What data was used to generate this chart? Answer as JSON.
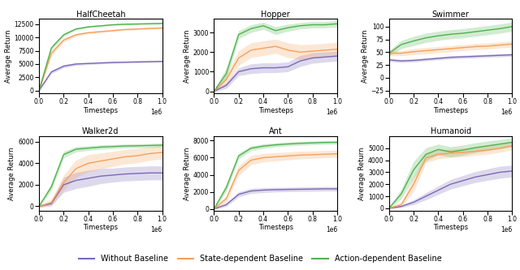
{
  "titles": [
    "HalfCheetah",
    "Hopper",
    "Swimmer",
    "Walker2d",
    "Ant",
    "Humanoid"
  ],
  "xlabel": "Timesteps",
  "ylabel": "Average Return",
  "colors": {
    "without": "#7b6ab5",
    "state": "#f5a05a",
    "action": "#4db34d"
  },
  "fill_alpha": 0.25,
  "legend_labels": [
    "Without Baseline",
    "State-dependent Baseline",
    "Action-dependent Baseline"
  ],
  "subplots": {
    "HalfCheetah": {
      "xlim": [
        0,
        1000000
      ],
      "ylim": [
        -500,
        13500
      ],
      "yticks": [
        0,
        2500,
        5000,
        7500,
        10000,
        12500
      ],
      "without": {
        "mean": [
          0,
          3500,
          4600,
          5000,
          5100,
          5200,
          5300,
          5350,
          5400,
          5450,
          5500
        ],
        "std": [
          200,
          300,
          300,
          250,
          200,
          200,
          180,
          180,
          180,
          180,
          180
        ]
      },
      "state": {
        "mean": [
          0,
          7000,
          9500,
          10500,
          10900,
          11100,
          11300,
          11500,
          11600,
          11700,
          11800
        ],
        "std": [
          200,
          500,
          350,
          280,
          220,
          200,
          180,
          180,
          180,
          180,
          180
        ]
      },
      "action": {
        "mean": [
          0,
          8000,
          10500,
          11600,
          12000,
          12200,
          12400,
          12500,
          12550,
          12600,
          12650
        ],
        "std": [
          200,
          400,
          300,
          200,
          180,
          160,
          150,
          150,
          150,
          150,
          150
        ]
      }
    },
    "Hopper": {
      "xlim": [
        0,
        1000000
      ],
      "ylim": [
        -100,
        3700
      ],
      "yticks": [
        0,
        1000,
        2000,
        3000
      ],
      "without": {
        "mean": [
          0,
          300,
          1000,
          1150,
          1200,
          1200,
          1250,
          1550,
          1700,
          1750,
          1800
        ],
        "std": [
          50,
          150,
          200,
          250,
          250,
          250,
          250,
          280,
          270,
          260,
          260
        ]
      },
      "state": {
        "mean": [
          0,
          600,
          1700,
          2100,
          2200,
          2300,
          2100,
          2000,
          2050,
          2100,
          2150
        ],
        "std": [
          50,
          250,
          380,
          380,
          380,
          360,
          380,
          380,
          360,
          350,
          350
        ]
      },
      "action": {
        "mean": [
          0,
          900,
          2900,
          3200,
          3350,
          3100,
          3250,
          3350,
          3400,
          3400,
          3450
        ],
        "std": [
          50,
          300,
          200,
          200,
          180,
          200,
          180,
          160,
          160,
          160,
          160
        ]
      }
    },
    "Swimmer": {
      "xlim": [
        0,
        1000000
      ],
      "ylim": [
        -30,
        115
      ],
      "yticks": [
        -25,
        0,
        25,
        50,
        75,
        100
      ],
      "without": {
        "mean": [
          35,
          33,
          34,
          36,
          38,
          40,
          41,
          42,
          43,
          44,
          45
        ],
        "std": [
          3,
          3,
          3,
          3,
          3,
          3,
          3,
          3,
          3,
          3,
          3
        ]
      },
      "state": {
        "mean": [
          48,
          48,
          51,
          53,
          55,
          57,
          59,
          61,
          62,
          64,
          66
        ],
        "std": [
          5,
          5,
          6,
          6,
          6,
          6,
          6,
          6,
          6,
          6,
          6
        ]
      },
      "action": {
        "mean": [
          48,
          65,
          72,
          78,
          82,
          85,
          87,
          90,
          93,
          96,
          100
        ],
        "std": [
          5,
          8,
          9,
          9,
          9,
          9,
          9,
          9,
          9,
          9,
          9
        ]
      }
    },
    "Walker2d": {
      "xlim": [
        0,
        1000000
      ],
      "ylim": [
        -400,
        6500
      ],
      "yticks": [
        0,
        2000,
        4000,
        6000
      ],
      "without": {
        "mean": [
          0,
          250,
          2000,
          2400,
          2600,
          2800,
          2900,
          3000,
          3050,
          3100,
          3100
        ],
        "std": [
          100,
          200,
          700,
          750,
          750,
          700,
          650,
          650,
          650,
          650,
          650
        ]
      },
      "state": {
        "mean": [
          0,
          350,
          2200,
          3500,
          4000,
          4200,
          4400,
          4600,
          4700,
          4900,
          5000
        ],
        "std": [
          100,
          300,
          700,
          800,
          800,
          750,
          700,
          680,
          660,
          640,
          620
        ]
      },
      "action": {
        "mean": [
          0,
          1800,
          4800,
          5300,
          5400,
          5500,
          5550,
          5600,
          5620,
          5650,
          5680
        ],
        "std": [
          100,
          350,
          300,
          250,
          220,
          200,
          180,
          180,
          180,
          180,
          180
        ]
      }
    },
    "Ant": {
      "xlim": [
        0,
        1000000
      ],
      "ylim": [
        -200,
        8500
      ],
      "yticks": [
        0,
        2000,
        4000,
        6000,
        8000
      ],
      "without": {
        "mean": [
          0,
          500,
          1700,
          2100,
          2200,
          2250,
          2280,
          2300,
          2320,
          2350,
          2350
        ],
        "std": [
          100,
          200,
          300,
          300,
          280,
          270,
          260,
          260,
          260,
          260,
          260
        ]
      },
      "state": {
        "mean": [
          0,
          1200,
          4500,
          5700,
          6000,
          6100,
          6200,
          6300,
          6350,
          6400,
          6450
        ],
        "std": [
          100,
          400,
          600,
          550,
          500,
          480,
          460,
          450,
          440,
          430,
          420
        ]
      },
      "action": {
        "mean": [
          0,
          2500,
          6200,
          7100,
          7350,
          7500,
          7600,
          7680,
          7730,
          7780,
          7800
        ],
        "std": [
          100,
          450,
          350,
          280,
          260,
          240,
          230,
          220,
          220,
          210,
          210
        ]
      }
    },
    "Humanoid": {
      "xlim": [
        0,
        1000000
      ],
      "ylim": [
        -200,
        6000
      ],
      "yticks": [
        0,
        1000,
        2000,
        3000,
        4000,
        5000
      ],
      "without": {
        "mean": [
          0,
          150,
          500,
          1000,
          1500,
          2000,
          2300,
          2600,
          2800,
          3000,
          3100
        ],
        "std": [
          50,
          100,
          200,
          300,
          350,
          400,
          430,
          460,
          480,
          500,
          500
        ]
      },
      "state": {
        "mean": [
          0,
          300,
          2000,
          4200,
          4500,
          4600,
          4650,
          4750,
          4850,
          5000,
          5200
        ],
        "std": [
          50,
          200,
          600,
          400,
          380,
          360,
          360,
          350,
          340,
          330,
          330
        ]
      },
      "action": {
        "mean": [
          0,
          1200,
          3200,
          4500,
          4900,
          4700,
          4850,
          5050,
          5200,
          5350,
          5500
        ],
        "std": [
          50,
          400,
          700,
          550,
          450,
          430,
          420,
          410,
          400,
          380,
          370
        ]
      }
    }
  }
}
